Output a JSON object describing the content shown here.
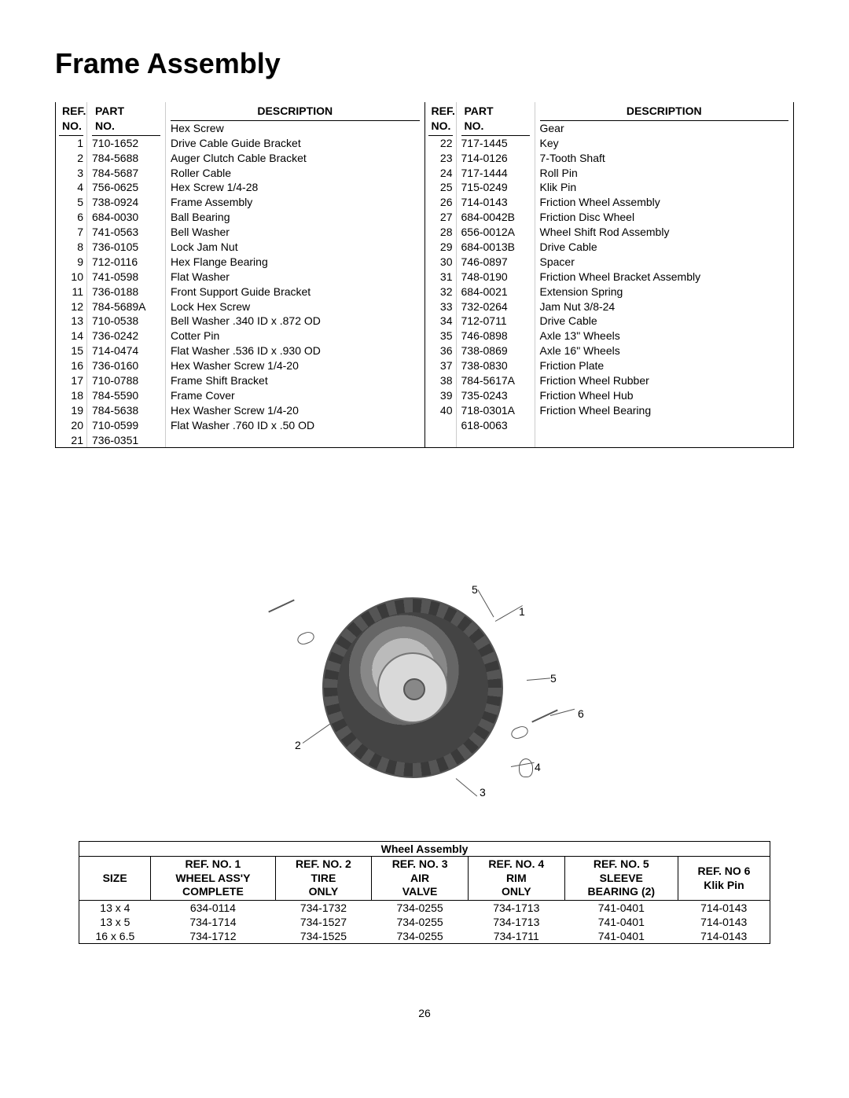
{
  "title": "Frame Assembly",
  "page_number": "26",
  "parts_headers": {
    "ref": "REF.\nNO.",
    "part": "PART\nNO.",
    "desc": "DESCRIPTION"
  },
  "parts_left": [
    {
      "ref": "1",
      "part": "710-1652",
      "desc": "Hex Screw"
    },
    {
      "ref": "2",
      "part": "784-5688",
      "desc": "Drive Cable Guide Bracket"
    },
    {
      "ref": "3",
      "part": "784-5687",
      "desc": "Auger Clutch Cable Bracket"
    },
    {
      "ref": "4",
      "part": "756-0625",
      "desc": "Roller Cable"
    },
    {
      "ref": "5",
      "part": "738-0924",
      "desc": "Hex Screw 1/4-28"
    },
    {
      "ref": "6",
      "part": "684-0030",
      "desc": "Frame Assembly"
    },
    {
      "ref": "7",
      "part": "741-0563",
      "desc": "Ball Bearing"
    },
    {
      "ref": "8",
      "part": "736-0105",
      "desc": "Bell Washer"
    },
    {
      "ref": "9",
      "part": "712-0116",
      "desc": "Lock Jam Nut"
    },
    {
      "ref": "10",
      "part": "741-0598",
      "desc": "Hex Flange Bearing"
    },
    {
      "ref": "11",
      "part": "736-0188",
      "desc": "Flat Washer"
    },
    {
      "ref": "12",
      "part": "784-5689A",
      "desc": "Front Support Guide Bracket"
    },
    {
      "ref": "13",
      "part": "710-0538",
      "desc": "Lock Hex Screw"
    },
    {
      "ref": "14",
      "part": "736-0242",
      "desc": "Bell Washer .340 ID x .872 OD"
    },
    {
      "ref": "15",
      "part": "714-0474",
      "desc": "Cotter Pin"
    },
    {
      "ref": "16",
      "part": "736-0160",
      "desc": "Flat Washer .536 ID x .930 OD"
    },
    {
      "ref": "17",
      "part": "710-0788",
      "desc": "Hex Washer Screw 1/4-20"
    },
    {
      "ref": "18",
      "part": "784-5590",
      "desc": "Frame Shift Bracket"
    },
    {
      "ref": "19",
      "part": "784-5638",
      "desc": "Frame Cover"
    },
    {
      "ref": "20",
      "part": "710-0599",
      "desc": "Hex Washer Screw 1/4-20"
    },
    {
      "ref": "21",
      "part": "736-0351",
      "desc": "Flat Washer .760 ID x .50 OD"
    }
  ],
  "parts_right": [
    {
      "ref": "22",
      "part": "717-1445",
      "desc": "Gear"
    },
    {
      "ref": "23",
      "part": "714-0126",
      "desc": "Key"
    },
    {
      "ref": "24",
      "part": "717-1444",
      "desc": "7-Tooth Shaft"
    },
    {
      "ref": "25",
      "part": "715-0249",
      "desc": "Roll Pin"
    },
    {
      "ref": "26",
      "part": "714-0143",
      "desc": "Klik Pin"
    },
    {
      "ref": "27",
      "part": "684-0042B",
      "desc": "Friction Wheel Assembly"
    },
    {
      "ref": "28",
      "part": "656-0012A",
      "desc": "Friction Disc Wheel"
    },
    {
      "ref": "29",
      "part": "684-0013B",
      "desc": "Wheel Shift Rod Assembly"
    },
    {
      "ref": "30",
      "part": "746-0897",
      "desc": "Drive Cable"
    },
    {
      "ref": "31",
      "part": "748-0190",
      "desc": "Spacer"
    },
    {
      "ref": "32",
      "part": "684-0021",
      "desc": "Friction Wheel Bracket Assembly"
    },
    {
      "ref": "33",
      "part": "732-0264",
      "desc": "Extension Spring"
    },
    {
      "ref": "34",
      "part": "712-0711",
      "desc": "Jam Nut 3/8-24"
    },
    {
      "ref": "35",
      "part": "746-0898",
      "desc": "Drive Cable"
    },
    {
      "ref": "36",
      "part": "738-0869",
      "desc": "Axle 13\" Wheels"
    },
    {
      "ref": "",
      "part": "738-0830",
      "desc": "Axle 16\" Wheels"
    },
    {
      "ref": "37",
      "part": "784-5617A",
      "desc": "Friction Plate"
    },
    {
      "ref": "38",
      "part": "735-0243",
      "desc": "Friction Wheel Rubber"
    },
    {
      "ref": "39",
      "part": "718-0301A",
      "desc": "Friction Wheel Hub"
    },
    {
      "ref": "40",
      "part": "618-0063",
      "desc": "Friction Wheel Bearing"
    }
  ],
  "diagram_callouts": [
    "1",
    "2",
    "3",
    "4",
    "5",
    "5",
    "6"
  ],
  "wheel_table": {
    "title": "Wheel Assembly",
    "columns": [
      "SIZE",
      "REF. NO. 1\nWHEEL ASS'Y\nCOMPLETE",
      "REF. NO. 2\nTIRE\nONLY",
      "REF. NO. 3\nAIR\nVALVE",
      "REF. NO. 4\nRIM\nONLY",
      "REF. NO. 5\nSLEEVE\nBEARING (2)",
      "REF. NO 6\nKlik Pin"
    ],
    "rows": [
      [
        "13 x 4",
        "634-0114",
        "734-1732",
        "734-0255",
        "734-1713",
        "741-0401",
        "714-0143"
      ],
      [
        "13 x 5",
        "734-1714",
        "734-1527",
        "734-0255",
        "734-1713",
        "741-0401",
        "714-0143"
      ],
      [
        "16 x 6.5",
        "734-1712",
        "734-1525",
        "734-0255",
        "734-1711",
        "741-0401",
        "714-0143"
      ]
    ]
  }
}
